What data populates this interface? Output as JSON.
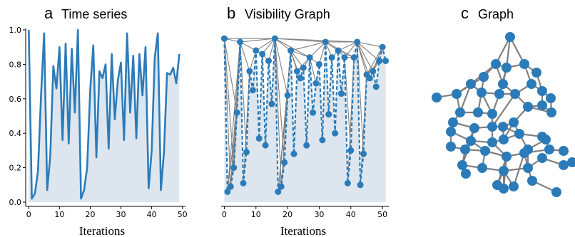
{
  "colors": {
    "series": "#2b7bb9",
    "area": "#dde6ee",
    "edge": "#808080",
    "node": "#2b7bb9"
  },
  "chart_data": [
    {
      "type": "area",
      "panel_letter": "a",
      "title": "Time series",
      "xlabel": "Iterations",
      "ylabel": "",
      "xlim": [
        -1,
        51
      ],
      "ylim": [
        0,
        1.0
      ],
      "xticks": [
        "0",
        "10",
        "20",
        "30",
        "40",
        "50"
      ],
      "xtick_values": [
        0,
        10,
        20,
        30,
        40,
        50
      ],
      "yticks": [
        "0.0",
        "0.2",
        "0.4",
        "0.6",
        "0.8",
        "1.0"
      ],
      "ytick_values": [
        0,
        0.2,
        0.4,
        0.6,
        0.8,
        1.0
      ],
      "grid": false,
      "x": [
        0,
        1,
        2,
        3,
        4,
        5,
        6,
        7,
        8,
        9,
        10,
        11,
        12,
        13,
        14,
        15,
        16,
        17,
        18,
        19,
        20,
        21,
        22,
        23,
        24,
        25,
        26,
        27,
        28,
        29,
        30,
        31,
        32,
        33,
        34,
        35,
        36,
        37,
        38,
        39,
        40,
        41,
        42,
        43,
        44,
        45,
        46,
        47,
        48,
        49
      ],
      "values": [
        1.0,
        0.02,
        0.05,
        0.18,
        0.62,
        0.98,
        0.07,
        0.27,
        0.79,
        0.66,
        0.9,
        0.36,
        0.92,
        0.34,
        0.89,
        0.52,
        1.0,
        0.02,
        0.07,
        0.2,
        0.65,
        0.91,
        0.26,
        0.76,
        0.72,
        0.8,
        0.31,
        0.86,
        0.48,
        0.71,
        0.81,
        0.36,
        0.98,
        0.52,
        0.85,
        0.37,
        0.86,
        0.62,
        0.9,
        0.08,
        0.3,
        0.84,
        0.98,
        0.07,
        0.29,
        0.75,
        0.74,
        0.78,
        0.69,
        0.86
      ]
    },
    {
      "type": "scatter",
      "panel_letter": "b",
      "title": "Visibility Graph",
      "xlabel": "Iterations",
      "ylabel": "",
      "xlim": [
        -1,
        52
      ],
      "ylim": [
        0,
        1.0
      ],
      "xticks": [
        "0",
        "10",
        "20",
        "30",
        "40",
        "50"
      ],
      "xtick_values": [
        0,
        10,
        20,
        30,
        40,
        50
      ],
      "grid": false,
      "x": [
        0,
        1,
        2,
        3,
        4,
        5,
        6,
        7,
        8,
        9,
        10,
        11,
        12,
        13,
        14,
        15,
        16,
        17,
        18,
        19,
        20,
        21,
        22,
        23,
        24,
        25,
        26,
        27,
        28,
        29,
        30,
        31,
        32,
        33,
        34,
        35,
        36,
        37,
        38,
        39,
        40,
        41,
        42,
        43,
        44,
        45,
        46,
        47,
        48,
        49,
        50,
        51
      ],
      "values": [
        0.95,
        0.06,
        0.09,
        0.2,
        0.52,
        0.93,
        0.11,
        0.29,
        0.76,
        0.65,
        0.88,
        0.37,
        0.86,
        0.33,
        0.82,
        0.57,
        0.95,
        0.06,
        0.09,
        0.23,
        0.62,
        0.88,
        0.28,
        0.76,
        0.72,
        0.78,
        0.33,
        0.84,
        0.52,
        0.69,
        0.8,
        0.36,
        0.93,
        0.51,
        0.84,
        0.4,
        0.88,
        0.63,
        0.84,
        0.11,
        0.3,
        0.84,
        0.93,
        0.1,
        0.28,
        0.74,
        0.72,
        0.76,
        0.67,
        0.82,
        0.9,
        0.82
      ]
    },
    {
      "type": "network",
      "panel_letter": "c",
      "title": "Graph",
      "nodes": 52
    }
  ]
}
